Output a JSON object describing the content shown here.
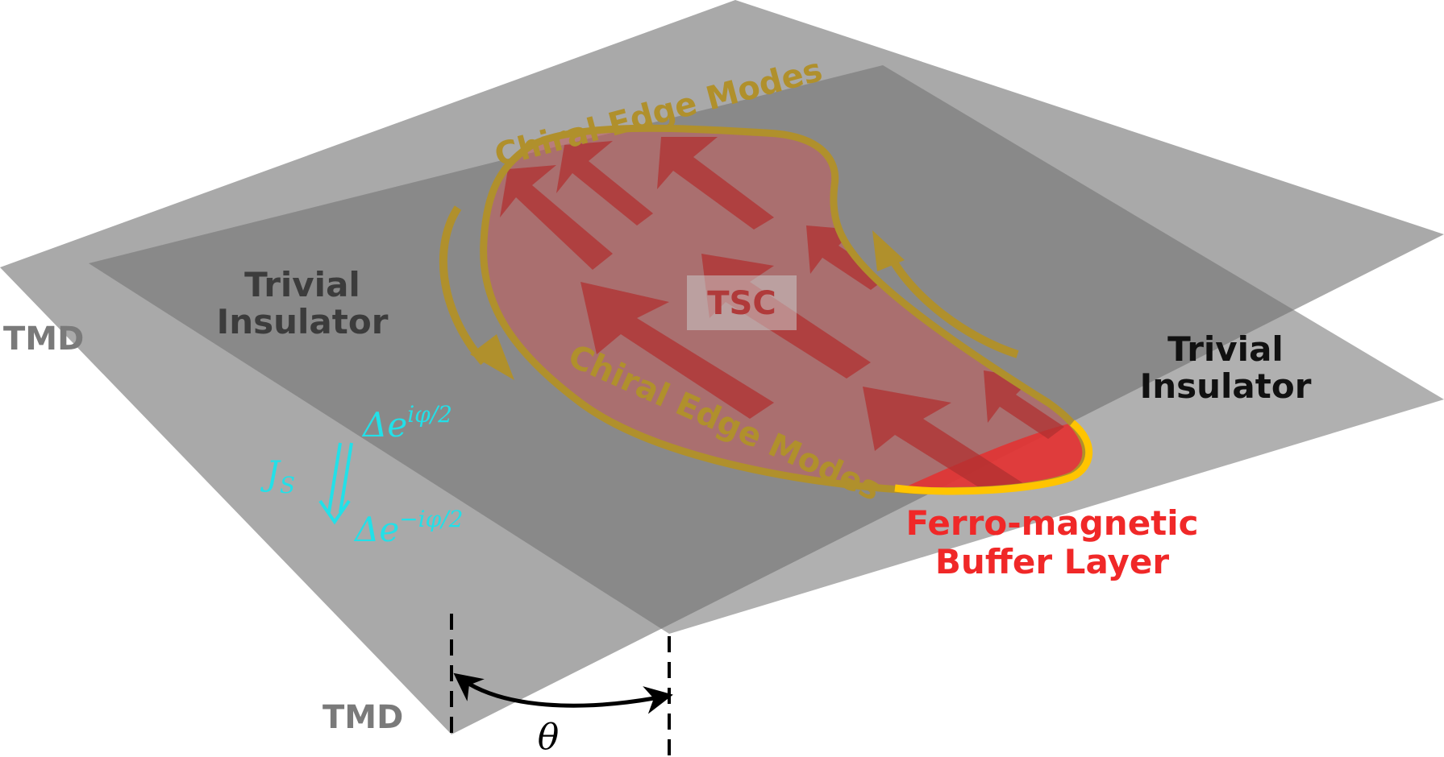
{
  "diagram": {
    "layers": {
      "top_layer_label": "TMD",
      "bottom_layer_label": "TMD"
    },
    "regions": {
      "trivial_insulator_left": [
        "Trivial",
        "Insulator"
      ],
      "trivial_insulator_right": [
        "Trivial",
        "Insulator"
      ],
      "tsc": "TSC"
    },
    "edge_modes": {
      "upper": "Chiral Edge Modes",
      "lower": "Chiral Edge Modes"
    },
    "buffer_layer": [
      "Ferro-magnetic",
      "Buffer Layer"
    ],
    "supercurrent": {
      "current_symbol": "J",
      "current_subscript": "S",
      "phase_upper": "Δe",
      "phase_upper_exponent": "iφ/2",
      "phase_lower": "Δe",
      "phase_lower_exponent": "−iφ/2"
    },
    "twist_angle": "θ",
    "colors": {
      "outer_plane": "#a9a9a9",
      "inner_plane": "#828282",
      "tsc_fill": "#c45a5a",
      "arrow_fill": "#b03030",
      "edge_mode": "#b0902c",
      "buffer_highlight": "#ffc400",
      "buffer_text": "#f02828",
      "current": "#22e0e8",
      "tmd_text": "#7a7a7a"
    }
  }
}
